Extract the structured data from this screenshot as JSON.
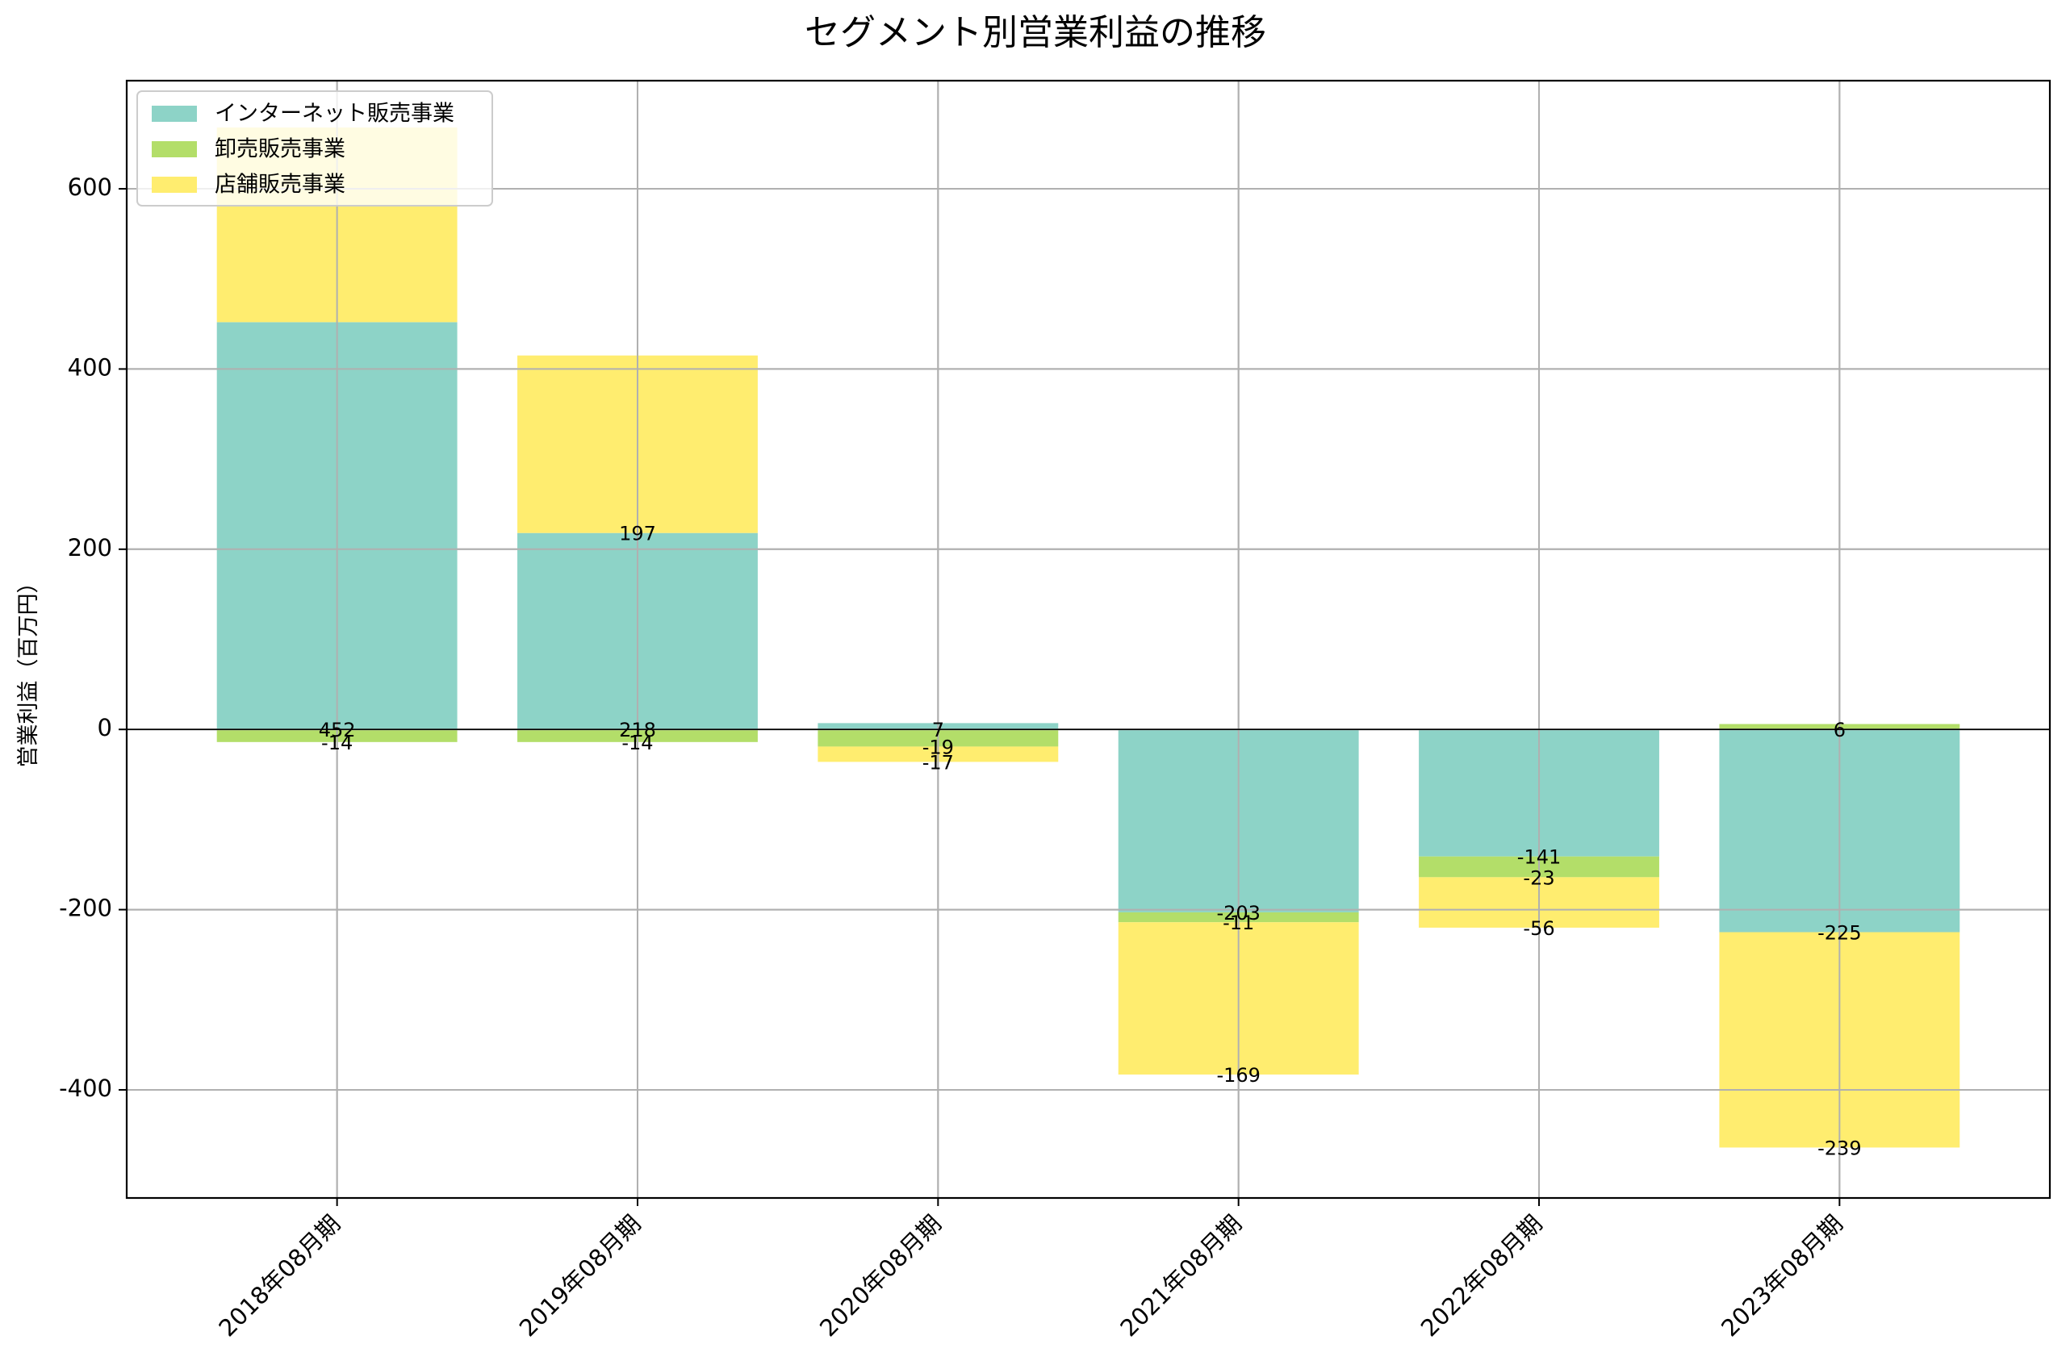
{
  "chart_data": {
    "type": "bar",
    "stacked": true,
    "title": "セグメント別営業利益の推移",
    "xlabel": "",
    "ylabel": "営業利益（百万円）",
    "ylim": [
      -520,
      720
    ],
    "yticks": [
      -400,
      -200,
      0,
      200,
      400,
      600
    ],
    "ytick_labels": [
      "-400",
      "-200",
      "0",
      "200",
      "400",
      "600"
    ],
    "categories": [
      "2018年08月期",
      "2019年08月期",
      "2020年08月期",
      "2021年08月期",
      "2022年08月期",
      "2023年08月期"
    ],
    "series": [
      {
        "name": "インターネット販売事業",
        "color": "#8dd3c7",
        "values": [
          452,
          218,
          7,
          -203,
          -141,
          -225
        ],
        "labels": [
          "452",
          "218",
          "7",
          "-203",
          "-141",
          "-225"
        ]
      },
      {
        "name": "卸売販売事業",
        "color": "#b3de69",
        "values": [
          -14,
          -14,
          -19,
          -11,
          -23,
          6
        ],
        "labels": [
          "-14",
          "-14",
          "-19",
          "-11",
          "-23",
          "6"
        ]
      },
      {
        "name": "店舗販売事業",
        "color": "#ffed6f",
        "values": [
          216,
          197,
          -17,
          -169,
          -56,
          -239
        ],
        "labels": [
          "",
          "197",
          "-17",
          "-169",
          "-56",
          "-239"
        ]
      }
    ],
    "grid": true,
    "legend_position": "top-left"
  }
}
